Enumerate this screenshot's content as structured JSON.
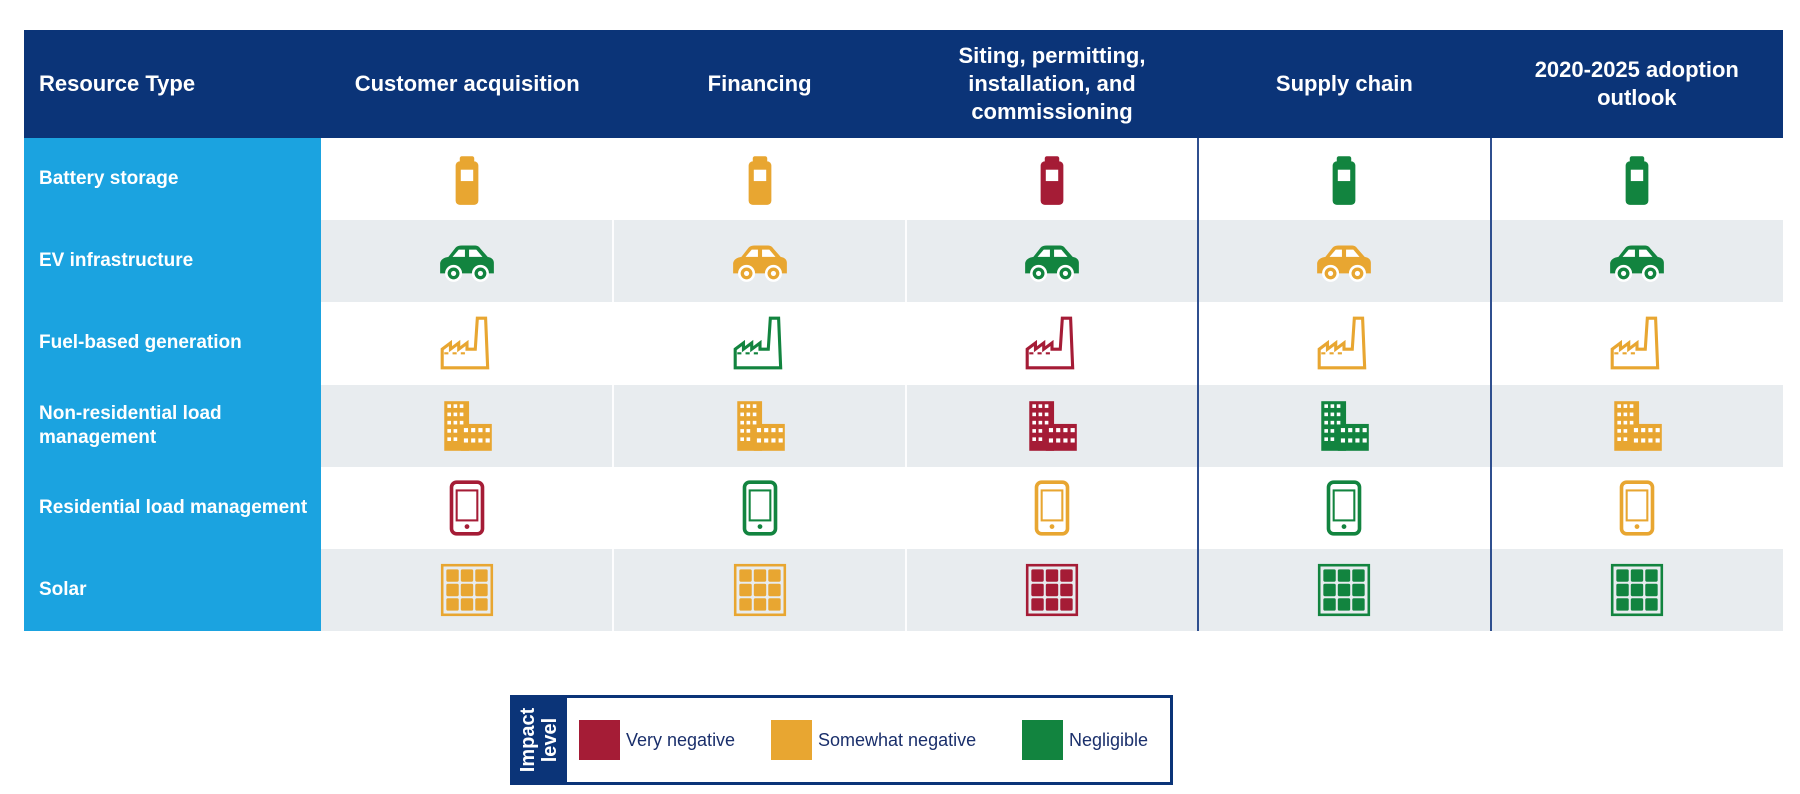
{
  "header": {
    "columns": [
      "Resource Type",
      "Customer acquisition",
      "Financing",
      "Siting, permitting, installation, and commissioning",
      "Supply chain",
      "2020-2025 adoption outlook"
    ]
  },
  "rows": [
    {
      "label": "Battery storage",
      "cells": [
        "Somewhat negative",
        "Somewhat negative",
        "Very negative",
        "Negligible",
        "Negligible"
      ]
    },
    {
      "label": "EV infrastructure",
      "cells": [
        "Negligible",
        "Somewhat negative",
        "Negligible",
        "Somewhat negative",
        "Negligible"
      ]
    },
    {
      "label": "Fuel-based generation",
      "cells": [
        "Somewhat negative",
        "Negligible",
        "Very negative",
        "Somewhat negative",
        "Somewhat negative"
      ]
    },
    {
      "label": "Non-residential load management",
      "cells": [
        "Somewhat negative",
        "Somewhat negative",
        "Very negative",
        "Negligible",
        "Somewhat negative"
      ]
    },
    {
      "label": "Residential load management",
      "cells": [
        "Very negative",
        "Negligible",
        "Somewhat negative",
        "Negligible",
        "Somewhat negative"
      ]
    },
    {
      "label": "Solar",
      "cells": [
        "Somewhat negative",
        "Somewhat negative",
        "Very negative",
        "Negligible",
        "Negligible"
      ]
    }
  ],
  "legend": {
    "title_lines": [
      "Impact",
      "level"
    ],
    "items": [
      {
        "label": "Very negative",
        "color": "#a51c36"
      },
      {
        "label": "Somewhat negative",
        "color": "#e8a631"
      },
      {
        "label": "Negligible",
        "color": "#12843f"
      }
    ]
  }
}
